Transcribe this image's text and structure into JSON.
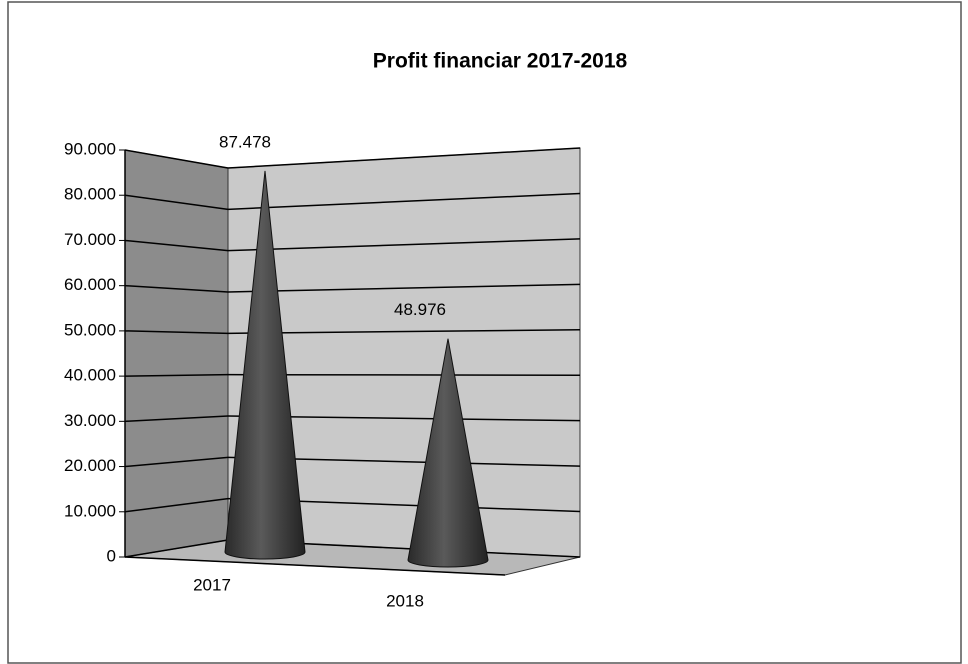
{
  "chart_data": {
    "type": "cone",
    "title": "Profit financiar 2017-2018",
    "categories": [
      "2017",
      "2018"
    ],
    "values": [
      87478,
      48976
    ],
    "value_labels": [
      "87.478",
      "48.976"
    ],
    "color": "#3a3a3a",
    "ylim": [
      0,
      90000
    ],
    "yticks": [
      0,
      {
        "value": 10000,
        "label": "10.000"
      },
      {
        "value": 20000,
        "label": "20.000"
      },
      {
        "value": 30000,
        "label": "30.000"
      },
      {
        "value": 40000,
        "label": "40.000"
      },
      {
        "value": 50000,
        "label": "50.000"
      },
      {
        "value": 60000,
        "label": "60.000"
      },
      {
        "value": 70000,
        "label": "70.000"
      },
      {
        "value": 80000,
        "label": "80.000"
      },
      {
        "value": 90000,
        "label": "90.000"
      }
    ],
    "grid": true
  }
}
